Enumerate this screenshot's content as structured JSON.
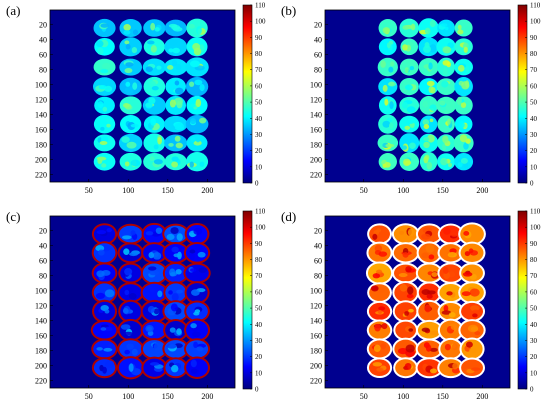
{
  "chart_data": [
    {
      "type": "heatmap",
      "panel_label": "(a)",
      "description": "thermal / intensity image of 40 seeds in a 5x8 grid",
      "x_ticks": [
        50,
        100,
        150,
        200
      ],
      "y_ticks": [
        20,
        40,
        60,
        80,
        100,
        120,
        140,
        160,
        180,
        200,
        220
      ],
      "xlim": [
        1,
        235
      ],
      "ylim": [
        230,
        1
      ],
      "colorbar": {
        "min": 0,
        "max": 110,
        "ticks": [
          0,
          10,
          20,
          30,
          40,
          50,
          60,
          70,
          80,
          90,
          100,
          110
        ],
        "colormap": "jet"
      },
      "background_value": 0,
      "seed_fill": "uniform ~40",
      "rim": "none"
    },
    {
      "type": "heatmap",
      "panel_label": "(b)",
      "x_ticks": [
        50,
        100,
        150,
        200
      ],
      "y_ticks": [
        20,
        40,
        60,
        80,
        100,
        120,
        140,
        160,
        180,
        200,
        220
      ],
      "xlim": [
        1,
        235
      ],
      "ylim": [
        230,
        1
      ],
      "colorbar": {
        "min": 0,
        "max": 110,
        "ticks": [
          0,
          10,
          20,
          30,
          40,
          50,
          60,
          70,
          80,
          90,
          100,
          110
        ],
        "colormap": "jet"
      },
      "background_value": 0,
      "seed_fill": "uniform ~45",
      "rim": "none"
    },
    {
      "type": "heatmap",
      "panel_label": "(c)",
      "x_ticks": [
        50,
        100,
        150,
        200
      ],
      "y_ticks": [
        20,
        40,
        60,
        80,
        100,
        120,
        140,
        160,
        180,
        200,
        220
      ],
      "xlim": [
        1,
        235
      ],
      "ylim": [
        230,
        1
      ],
      "colorbar": {
        "min": 0,
        "max": 110,
        "ticks": [
          0,
          10,
          20,
          30,
          40,
          50,
          60,
          70,
          80,
          90,
          100,
          110
        ],
        "colormap": "jet"
      },
      "background_value": 0,
      "seed_fill": "low ~15",
      "rim": "high ~105"
    },
    {
      "type": "heatmap",
      "panel_label": "(d)",
      "x_ticks": [
        50,
        100,
        150,
        200
      ],
      "y_ticks": [
        20,
        40,
        60,
        80,
        100,
        120,
        140,
        160,
        180,
        200,
        220
      ],
      "xlim": [
        1,
        235
      ],
      "ylim": [
        230,
        1
      ],
      "colorbar": {
        "min": 0,
        "max": 110,
        "ticks": [
          0,
          10,
          20,
          30,
          40,
          50,
          60,
          70,
          80,
          90,
          100,
          110
        ],
        "colormap": "jet"
      },
      "background_value": 0,
      "seed_fill": "high ~85",
      "rim": "white ~110"
    }
  ],
  "colors": {
    "background": "#00008f",
    "jet_stops": [
      "#00007f",
      "#0000ff",
      "#007fff",
      "#00ffff",
      "#7fff7f",
      "#ffff00",
      "#ff7f00",
      "#ff0000",
      "#7f0000"
    ]
  }
}
